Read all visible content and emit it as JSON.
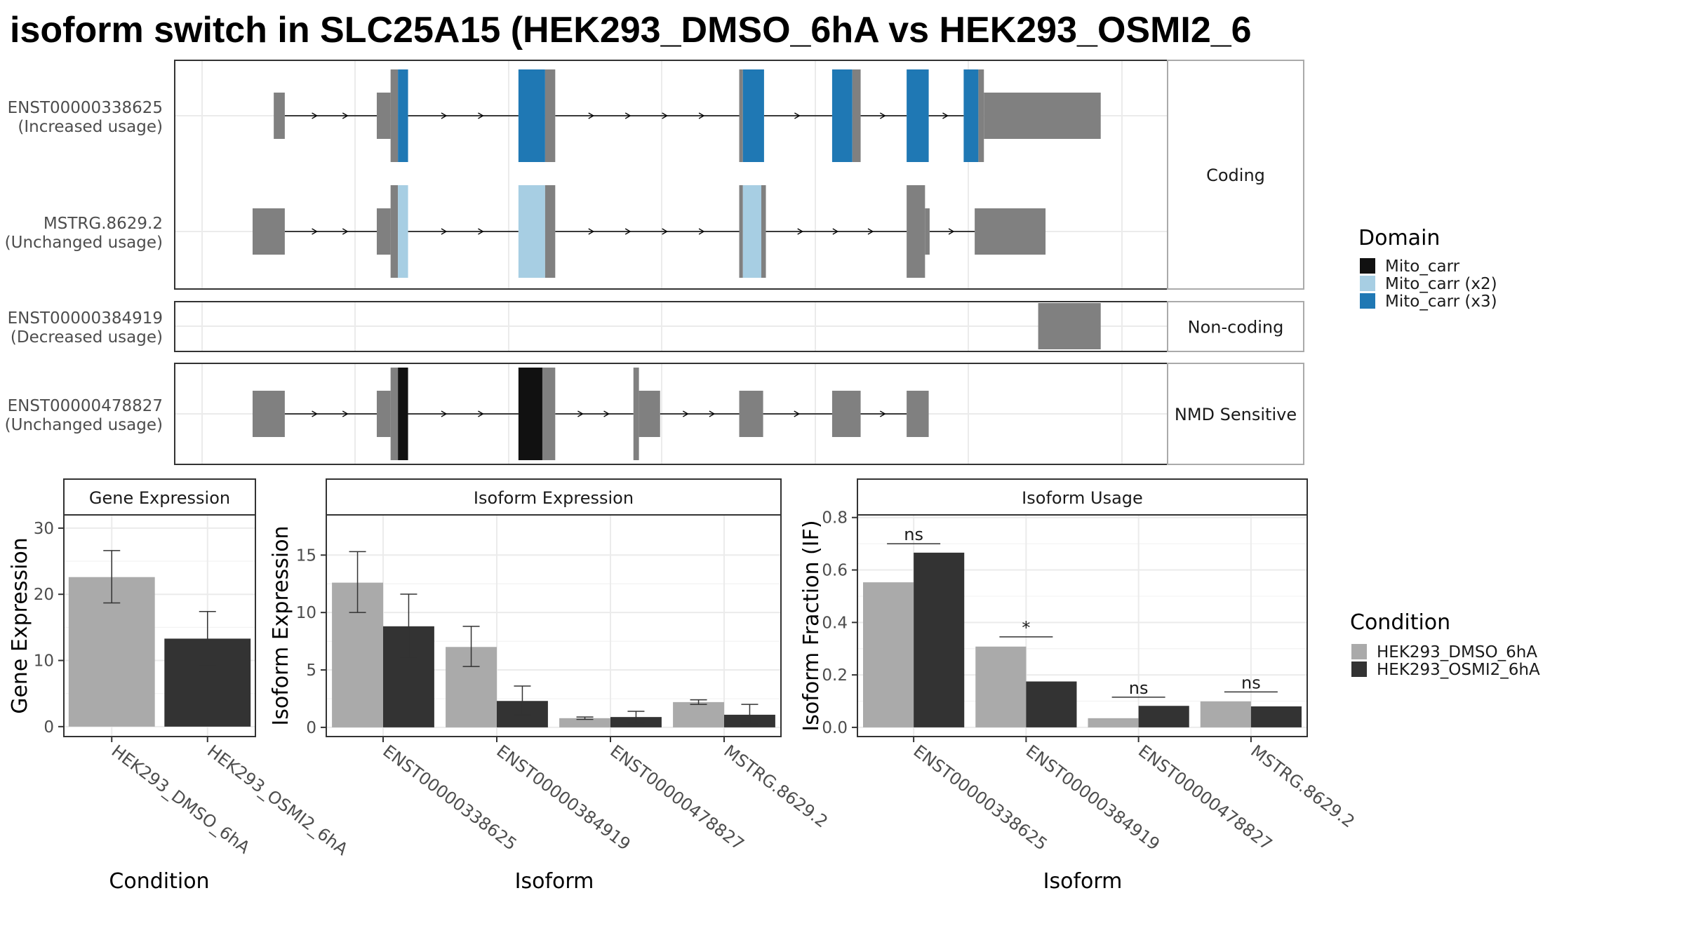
{
  "title": "isoform switch in SLC25A15 (HEK293_DMSO_6hA vs HEK293_OSMI2_6",
  "colors": {
    "exon": "#808080",
    "mito_carr": "#111111",
    "mito_carr_x2": "#a7cee3",
    "mito_carr_x3": "#1f78b4",
    "dmso": "#aaaaaa",
    "osmi2": "#333333"
  },
  "legends": {
    "domain": {
      "title": "Domain",
      "items": [
        {
          "label": "Mito_carr",
          "color": "#111111"
        },
        {
          "label": "Mito_carr (x2)",
          "color": "#a7cee3"
        },
        {
          "label": "Mito_carr (x3)",
          "color": "#1f78b4"
        }
      ]
    },
    "condition": {
      "title": "Condition",
      "items": [
        {
          "label": "HEK293_DMSO_6hA",
          "color": "#aaaaaa"
        },
        {
          "label": "HEK293_OSMI2_6hA",
          "color": "#333333"
        }
      ]
    }
  },
  "chart_data": [
    {
      "type": "gene-structure",
      "xlim": [
        0,
        1000
      ],
      "groups": [
        {
          "label": "Coding",
          "isoforms": [
            {
              "name": "ENST00000338625",
              "usage": "(Increased usage)",
              "exons": [
                {
                  "s": 68,
                  "e": 80,
                  "h": "utr"
                },
                {
                  "s": 180,
                  "e": 195,
                  "h": "utr"
                },
                {
                  "s": 195,
                  "e": 203,
                  "h": "cds"
                },
                {
                  "s": 203,
                  "e": 214,
                  "h": "cds",
                  "d": "x3"
                },
                {
                  "s": 334,
                  "e": 363,
                  "h": "cds",
                  "d": "x3"
                },
                {
                  "s": 363,
                  "e": 374,
                  "h": "cds"
                },
                {
                  "s": 574,
                  "e": 578,
                  "h": "cds"
                },
                {
                  "s": 578,
                  "e": 601,
                  "h": "cds",
                  "d": "x3"
                },
                {
                  "s": 675,
                  "e": 697,
                  "h": "cds",
                  "d": "x3"
                },
                {
                  "s": 697,
                  "e": 706,
                  "h": "cds"
                },
                {
                  "s": 756,
                  "e": 780,
                  "h": "cds",
                  "d": "x3"
                },
                {
                  "s": 818,
                  "e": 834,
                  "h": "cds",
                  "d": "x3"
                },
                {
                  "s": 834,
                  "e": 840,
                  "h": "cds"
                },
                {
                  "s": 840,
                  "e": 967,
                  "h": "utr"
                }
              ]
            },
            {
              "name": "MSTRG.8629.2",
              "usage": "(Unchanged usage)",
              "exons": [
                {
                  "s": 45,
                  "e": 80,
                  "h": "utr"
                },
                {
                  "s": 180,
                  "e": 195,
                  "h": "utr"
                },
                {
                  "s": 195,
                  "e": 203,
                  "h": "cds"
                },
                {
                  "s": 203,
                  "e": 214,
                  "h": "cds",
                  "d": "x2"
                },
                {
                  "s": 334,
                  "e": 363,
                  "h": "cds",
                  "d": "x2"
                },
                {
                  "s": 363,
                  "e": 374,
                  "h": "cds"
                },
                {
                  "s": 574,
                  "e": 578,
                  "h": "cds"
                },
                {
                  "s": 578,
                  "e": 598,
                  "h": "cds",
                  "d": "x2"
                },
                {
                  "s": 598,
                  "e": 603,
                  "h": "cds"
                },
                {
                  "s": 756,
                  "e": 776,
                  "h": "cds"
                },
                {
                  "s": 776,
                  "e": 781,
                  "h": "utr"
                },
                {
                  "s": 830,
                  "e": 907,
                  "h": "utr"
                }
              ]
            }
          ]
        },
        {
          "label": "Non-coding",
          "isoforms": [
            {
              "name": "ENST00000384919",
              "usage": "(Decreased usage)",
              "exons": [
                {
                  "s": 899,
                  "e": 967,
                  "h": "utr"
                }
              ]
            }
          ]
        },
        {
          "label": "NMD Sensitive",
          "isoforms": [
            {
              "name": "ENST00000478827",
              "usage": "(Unchanged usage)",
              "exons": [
                {
                  "s": 45,
                  "e": 80,
                  "h": "utr"
                },
                {
                  "s": 180,
                  "e": 195,
                  "h": "utr"
                },
                {
                  "s": 195,
                  "e": 203,
                  "h": "cds"
                },
                {
                  "s": 203,
                  "e": 214,
                  "h": "cds",
                  "d": "x1"
                },
                {
                  "s": 334,
                  "e": 360,
                  "h": "cds",
                  "d": "x1"
                },
                {
                  "s": 360,
                  "e": 374,
                  "h": "cds"
                },
                {
                  "s": 459,
                  "e": 465,
                  "h": "cds"
                },
                {
                  "s": 465,
                  "e": 488,
                  "h": "utr"
                },
                {
                  "s": 574,
                  "e": 600,
                  "h": "utr"
                },
                {
                  "s": 675,
                  "e": 706,
                  "h": "utr"
                },
                {
                  "s": 756,
                  "e": 780,
                  "h": "utr"
                }
              ]
            }
          ]
        }
      ]
    },
    {
      "type": "bar",
      "title": "Gene Expression",
      "xlabel": "Condition",
      "ylabel": "Gene Expression",
      "ylim": [
        -1.5,
        32
      ],
      "yticks": [
        0,
        10,
        20,
        30
      ],
      "categories": [
        "HEK293_DMSO_6hA",
        "HEK293_OSMI2_6hA"
      ],
      "series": [
        {
          "values": [
            22.6,
            13.3
          ],
          "err_low": [
            18.7,
            9.2
          ],
          "err_high": [
            26.6,
            17.4
          ]
        }
      ]
    },
    {
      "type": "bar",
      "title": "Isoform Expression",
      "xlabel": "Isoform",
      "ylabel": "Isoform Expression",
      "ylim": [
        -0.8,
        18.5
      ],
      "yticks": [
        0,
        5,
        10,
        15
      ],
      "categories": [
        "ENST00000338625",
        "ENST00000384919",
        "ENST00000478827",
        "MSTRG.8629.2"
      ],
      "series": [
        {
          "values": [
            12.6,
            7.0,
            0.8,
            2.2
          ],
          "err_low": [
            10.0,
            5.3,
            0.7,
            2.0
          ],
          "err_high": [
            15.3,
            8.8,
            0.9,
            2.4
          ]
        },
        {
          "values": [
            8.8,
            2.3,
            0.9,
            1.1
          ],
          "err_low": [
            6.1,
            1.1,
            0.4,
            0.3
          ],
          "err_high": [
            11.6,
            3.6,
            1.4,
            2.0
          ]
        }
      ]
    },
    {
      "type": "bar",
      "title": "Isoform Usage",
      "xlabel": "Isoform",
      "ylabel": "Isoform Fraction (IF)",
      "ylim": [
        -0.035,
        0.81
      ],
      "yticks": [
        0.0,
        0.2,
        0.4,
        0.6,
        0.8
      ],
      "ytick_labels": [
        "0.0",
        "0.2",
        "0.4",
        "0.6",
        "0.8"
      ],
      "categories": [
        "ENST00000338625",
        "ENST00000384919",
        "ENST00000478827",
        "MSTRG.8629.2"
      ],
      "series": [
        {
          "values": [
            0.553,
            0.308,
            0.035,
            0.099
          ]
        },
        {
          "values": [
            0.666,
            0.175,
            0.082,
            0.08
          ]
        }
      ],
      "annotations": [
        {
          "category": 0,
          "label": "ns",
          "y": 0.7
        },
        {
          "category": 1,
          "label": "*",
          "y": 0.345
        },
        {
          "category": 2,
          "label": "ns",
          "y": 0.115
        },
        {
          "category": 3,
          "label": "ns",
          "y": 0.135
        }
      ]
    }
  ]
}
